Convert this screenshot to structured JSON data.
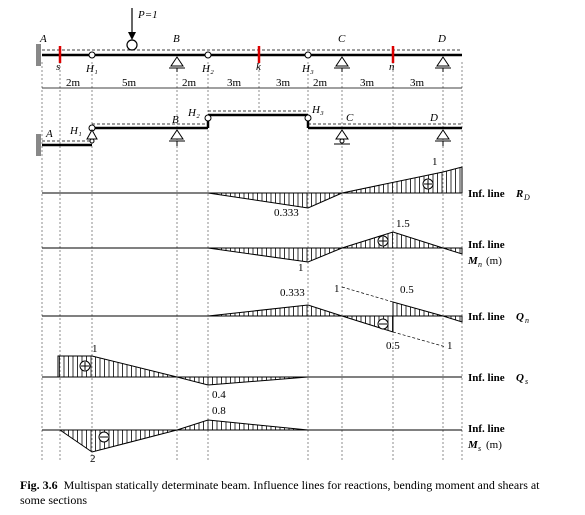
{
  "load": "P=1",
  "beam_labels": [
    "A",
    "s",
    "H₁",
    "B",
    "H₂",
    "k",
    "H₃",
    "C",
    "n",
    "D"
  ],
  "spans": [
    "2m",
    "5m",
    "2m",
    "3m",
    "3m",
    "2m",
    "3m",
    "3m"
  ],
  "floor_labels": [
    "A",
    "H₁",
    "B",
    "H₂",
    "H₃",
    "C",
    "D"
  ],
  "influence_lines": [
    {
      "name": {
        "text": "Inf. line",
        "symbol": "R",
        "subscript": "D"
      },
      "labels": [
        "0.333",
        "1"
      ]
    },
    {
      "name": {
        "text": "Inf. line",
        "symbol": "M",
        "subscript": "n",
        "unit": "(m)"
      },
      "labels": [
        "1",
        "1.5"
      ]
    },
    {
      "name": {
        "text": "Inf. line",
        "symbol": "Q",
        "subscript": "n"
      },
      "labels": [
        "0.333",
        "1",
        "0.5",
        "0.5",
        "1"
      ]
    },
    {
      "name": {
        "text": "Inf. line",
        "symbol": "Q",
        "subscript": "s"
      },
      "labels": [
        "1",
        "0.4"
      ]
    },
    {
      "name": {
        "text": "Inf. line",
        "symbol": "M",
        "subscript": "s",
        "unit": "(m)"
      },
      "labels": [
        "2",
        "0.8"
      ]
    }
  ],
  "caption": {
    "label": "Fig. 3.6",
    "text": "Multispan statically determinate beam. Influence lines for reactions, bending moment and shears at some sections"
  }
}
